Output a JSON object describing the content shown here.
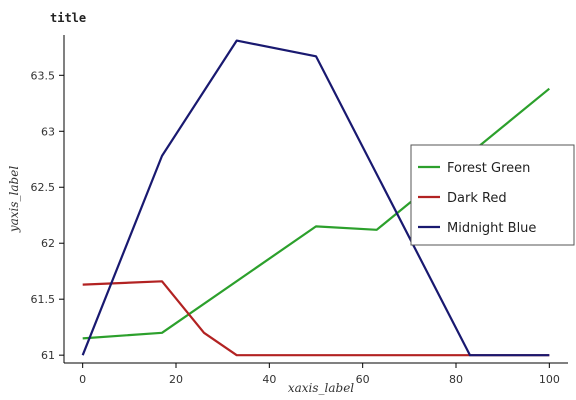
{
  "chart_data": {
    "type": "line",
    "title": "title",
    "xlabel": "xaxis_label",
    "ylabel": "yaxis_label",
    "xlim": [
      -4,
      104
    ],
    "ylim": [
      60.93,
      63.86
    ],
    "x_ticks": [
      0,
      20,
      40,
      60,
      80,
      100
    ],
    "y_ticks": [
      61,
      61.5,
      62,
      62.5,
      63,
      63.5
    ],
    "legend_position": "right",
    "grid": false,
    "series": [
      {
        "name": "Forest Green",
        "color": "#2ca02c",
        "x": [
          0,
          17,
          50,
          63,
          100
        ],
        "y": [
          61.15,
          61.2,
          62.15,
          62.12,
          63.38
        ]
      },
      {
        "name": "Dark Red",
        "color": "#b22222",
        "x": [
          0,
          17,
          26,
          33,
          100
        ],
        "y": [
          61.63,
          61.66,
          61.2,
          61.0,
          61.0
        ]
      },
      {
        "name": "Midnight Blue",
        "color": "#191970",
        "x": [
          0,
          17,
          33,
          50,
          83,
          100
        ],
        "y": [
          61.0,
          62.78,
          63.81,
          63.67,
          61.0,
          61.0
        ]
      }
    ]
  }
}
